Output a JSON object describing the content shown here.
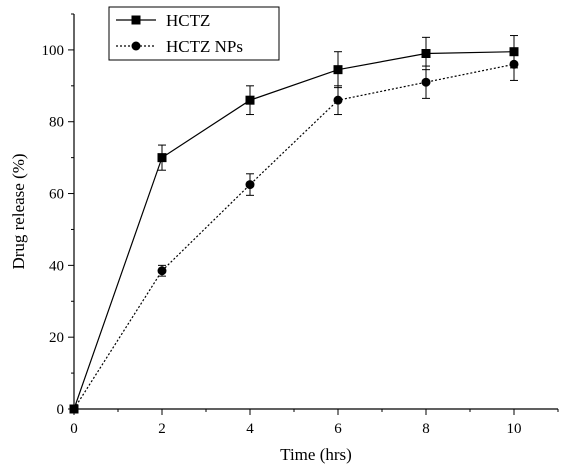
{
  "chart_data": {
    "type": "line",
    "xlabel": "Time (hrs)",
    "ylabel": "Drug release (%)",
    "xlim": [
      0,
      11
    ],
    "ylim": [
      0,
      110
    ],
    "xticks": [
      0,
      2,
      4,
      6,
      8,
      10
    ],
    "yticks": [
      0,
      20,
      40,
      60,
      80,
      100
    ],
    "legend_position": "top-left",
    "series": [
      {
        "name": "HCTZ",
        "marker": "square",
        "line_style": "solid",
        "x": [
          0,
          2,
          4,
          6,
          8,
          10
        ],
        "y": [
          0,
          70,
          86,
          94.5,
          99,
          99.5
        ],
        "error": [
          0,
          3.5,
          4,
          5,
          4.5,
          4.5
        ]
      },
      {
        "name": "HCTZ NPs",
        "marker": "circle",
        "line_style": "dotted",
        "x": [
          0,
          2,
          4,
          6,
          8,
          10
        ],
        "y": [
          0,
          38.5,
          62.5,
          86,
          91,
          96
        ],
        "error": [
          0,
          1.5,
          3,
          4,
          4.5,
          4.5
        ]
      }
    ],
    "colors": {
      "line": "#000000",
      "background": "#ffffff"
    }
  }
}
